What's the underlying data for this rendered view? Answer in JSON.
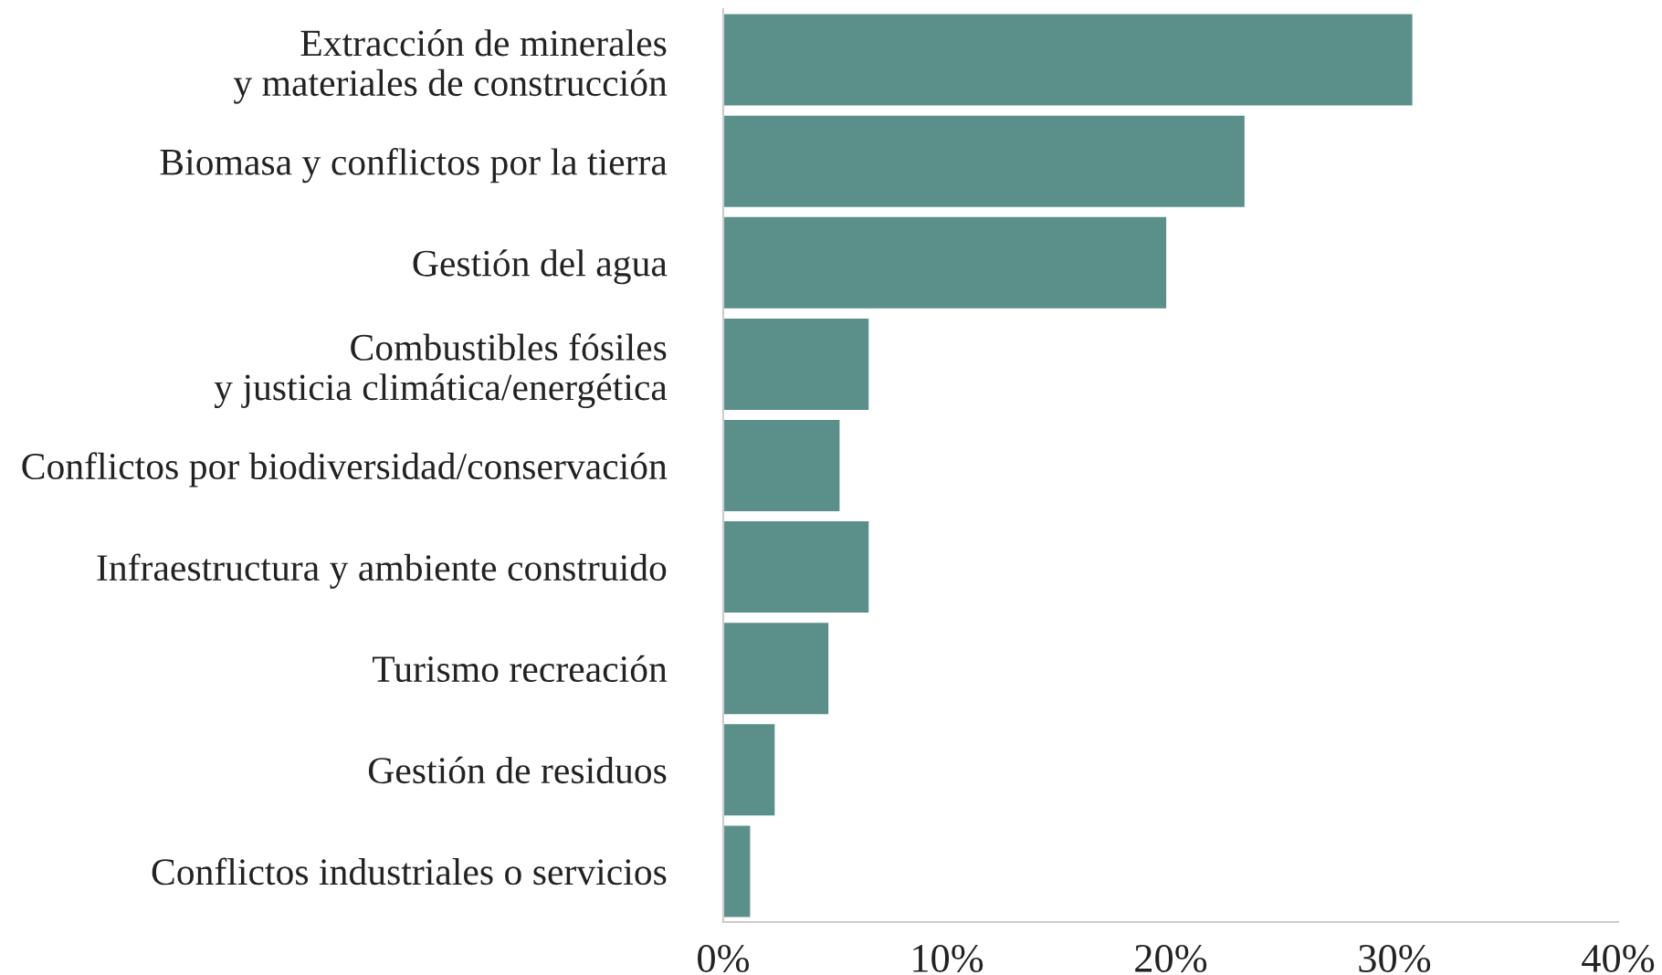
{
  "chart_data": {
    "type": "bar",
    "orientation": "horizontal",
    "categories": [
      "Extracción de minerales\ny materiales de construcción",
      "Biomasa y conflictos por la tierra",
      "Gestión del agua",
      "Combustibles fósiles\ny justicia climática/energética",
      "Conflictos por biodiversidad/conservación",
      "Infraestructura y ambiente construido",
      "Turismo recreación",
      "Gestión de residuos",
      "Conflictos industriales o servicios"
    ],
    "values": [
      30.8,
      23.3,
      19.8,
      6.5,
      5.2,
      6.5,
      4.7,
      2.3,
      1.2
    ],
    "color": "#5a9089",
    "xlim": [
      0,
      40
    ],
    "xticks": [
      {
        "value": 0,
        "label": "0%"
      },
      {
        "value": 10,
        "label": "10%"
      },
      {
        "value": 20,
        "label": "20%"
      },
      {
        "value": 30,
        "label": "30%"
      },
      {
        "value": 40,
        "label": "40%"
      }
    ],
    "grid": false,
    "legend": false
  }
}
